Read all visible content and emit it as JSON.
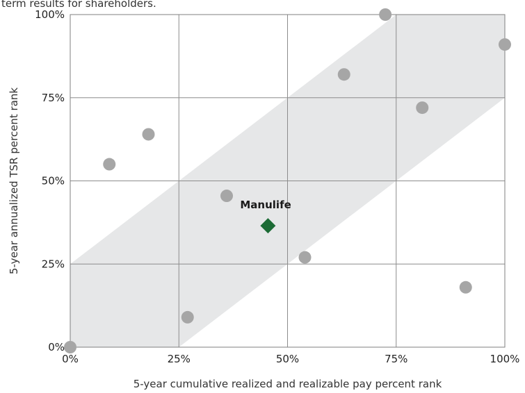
{
  "header_text": "term results for shareholders.",
  "chart_data": {
    "type": "scatter",
    "xlabel": "5-year cumulative realized and realizable pay percent rank",
    "ylabel": "5-year annualized TSR percent rank",
    "xlim": [
      0,
      100
    ],
    "ylim": [
      0,
      100
    ],
    "x_ticks": [
      0,
      25,
      50,
      75,
      100
    ],
    "y_ticks": [
      0,
      25,
      50,
      75,
      100
    ],
    "x_tick_labels": [
      "0%",
      "25%",
      "50%",
      "75%",
      "100%"
    ],
    "y_tick_labels": [
      "0%",
      "25%",
      "50%",
      "75%",
      "100%"
    ],
    "grid": true,
    "band": {
      "description": "alignment band",
      "lower_offset": -25,
      "upper_offset": 25,
      "color": "#e6e7e8"
    },
    "peers": {
      "color": "#a6a6a6",
      "points": [
        {
          "x": 0,
          "y": 0
        },
        {
          "x": 9,
          "y": 55
        },
        {
          "x": 18,
          "y": 64
        },
        {
          "x": 27,
          "y": 9
        },
        {
          "x": 36,
          "y": 45.5
        },
        {
          "x": 54,
          "y": 27
        },
        {
          "x": 63,
          "y": 82
        },
        {
          "x": 72.5,
          "y": 100
        },
        {
          "x": 81,
          "y": 72
        },
        {
          "x": 91,
          "y": 18
        },
        {
          "x": 100,
          "y": 91
        }
      ]
    },
    "highlight": {
      "label": "Manulife",
      "x": 45.5,
      "y": 36.5,
      "color": "#1c6b35"
    }
  }
}
